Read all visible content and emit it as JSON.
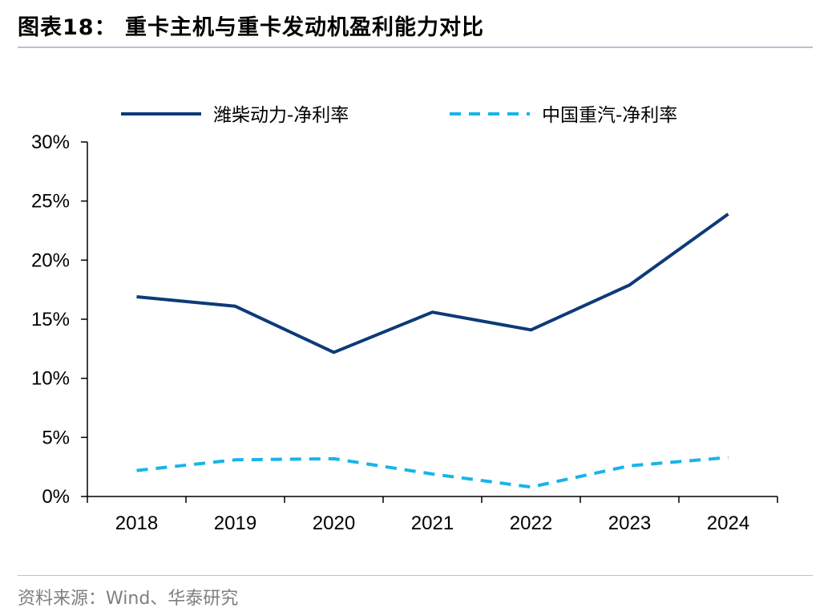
{
  "header": {
    "title": "图表18：  重卡主机与重卡发动机盈利能力对比"
  },
  "footer": {
    "source": "资料来源：Wind、华泰研究"
  },
  "colors": {
    "series1": "#0d3a78",
    "series2": "#18b4e8",
    "axis": "#000000",
    "rule": "#b7c3d2"
  },
  "chart_data": {
    "type": "line",
    "title": "",
    "xlabel": "",
    "ylabel": "",
    "categories": [
      "2018",
      "2019",
      "2020",
      "2021",
      "2022",
      "2023",
      "2024"
    ],
    "ylim": [
      0,
      30
    ],
    "yticks": [
      "0%",
      "5%",
      "10%",
      "15%",
      "20%",
      "25%",
      "30%"
    ],
    "grid": false,
    "legend_position": "top",
    "series": [
      {
        "name": "潍柴动力-净利率",
        "style": "solid",
        "values": [
          16.9,
          16.1,
          12.2,
          15.6,
          14.1,
          17.9,
          23.9
        ]
      },
      {
        "name": "中国重汽-净利率",
        "style": "dashed",
        "values": [
          2.2,
          3.1,
          3.2,
          1.9,
          0.8,
          2.6,
          3.3
        ]
      }
    ]
  }
}
